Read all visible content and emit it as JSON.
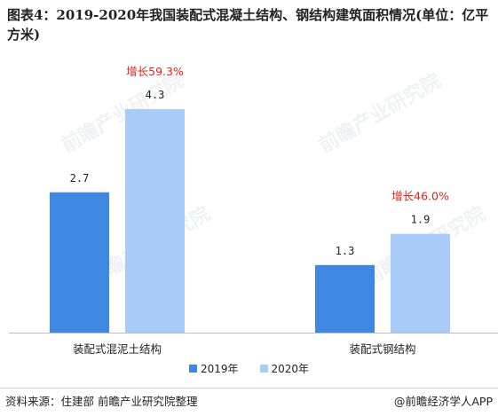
{
  "title": "图表4：2019-2020年我国装配式混凝土结构、钢结构建筑面积情况(单位：亿平方米)",
  "colors": {
    "series_2019": "#3f87e0",
    "series_2020": "#a9cbf7",
    "growth_label": "#e0241c"
  },
  "chart_data": {
    "type": "bar",
    "title": "图表4：2019-2020年我国装配式混凝土结构、钢结构建筑面积情况(单位：亿平方米)",
    "categories": [
      "装配式混泥土结构",
      "装配式钢结构"
    ],
    "series": [
      {
        "name": "2019年",
        "values": [
          2.7,
          1.3
        ]
      },
      {
        "name": "2020年",
        "values": [
          4.3,
          1.9
        ]
      }
    ],
    "growth_labels": [
      "增长59.3%",
      "增长46.0%"
    ],
    "value_labels": [
      [
        "2.7",
        "4.3"
      ],
      [
        "1.3",
        "1.9"
      ]
    ],
    "ylim": [
      0,
      4.3
    ],
    "grid": false,
    "legend_position": "bottom-center"
  },
  "legend": [
    "2019年",
    "2020年"
  ],
  "footer": {
    "source": "资料来源：住建部 前瞻产业研究院整理",
    "brand": "@前瞻经济学人APP"
  },
  "watermark_text": "前瞻产业研究院"
}
